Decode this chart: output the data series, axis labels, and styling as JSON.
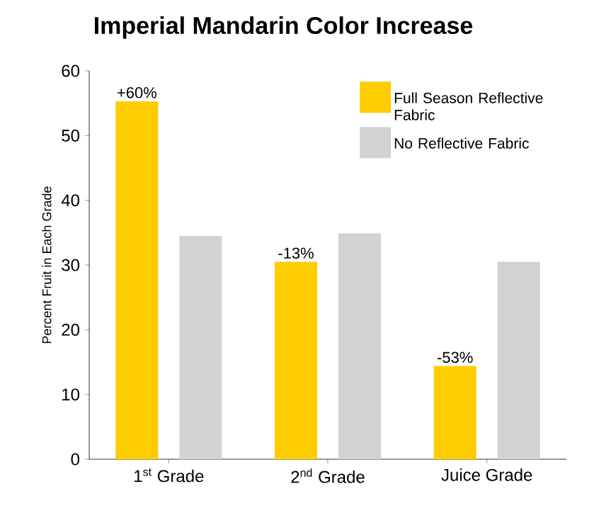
{
  "chart_data": {
    "type": "bar",
    "title": "Imperial Mandarin Color Increase",
    "ylabel": "Percent Fruit in Each Grade",
    "categories": [
      "1$^{st}$ Grade",
      "2$^{nd}$ Grade",
      "Juice Grade"
    ],
    "series": [
      {
        "name": "Full Season Reflective Fabric",
        "color": "#ffcc00",
        "values": [
          55.3,
          30.5,
          14.4
        ]
      },
      {
        "name": "No Reflective Fabric",
        "color": "#d1d2d4",
        "values": [
          34.5,
          34.9,
          30.5
        ]
      }
    ],
    "annotations": [
      "+60%",
      "-13%",
      "-53%"
    ],
    "ylim": [
      0,
      60
    ],
    "yticks": [
      0,
      10,
      20,
      30,
      40,
      50,
      60
    ],
    "legend": "top right",
    "grid": false
  }
}
